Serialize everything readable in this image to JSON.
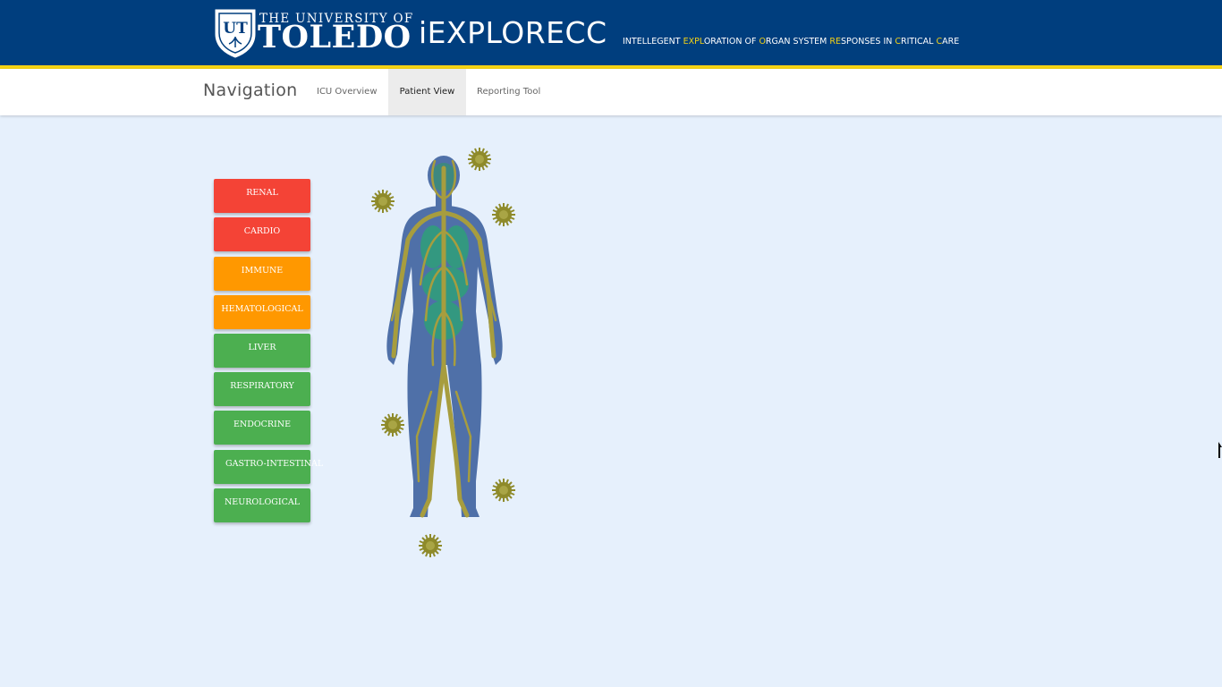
{
  "header": {
    "university_top": "THE UNIVERSITY OF",
    "university_main": "TOLEDO",
    "shield_letters": "UT",
    "app_title": "iEXPLORECC",
    "tagline": [
      {
        "text": "INTELLEGENT ",
        "hl": false
      },
      {
        "text": "EXPL",
        "hl": true
      },
      {
        "text": "ORATION OF ",
        "hl": false
      },
      {
        "text": "O",
        "hl": true
      },
      {
        "text": "RGAN SYSTEM ",
        "hl": false
      },
      {
        "text": "RE",
        "hl": true
      },
      {
        "text": "SPONSES IN ",
        "hl": false
      },
      {
        "text": "C",
        "hl": true
      },
      {
        "text": "RITICAL ",
        "hl": false
      },
      {
        "text": "C",
        "hl": true
      },
      {
        "text": "ARE",
        "hl": false
      }
    ],
    "colors": {
      "bar": "#003e7e",
      "accent": "#f5d314"
    }
  },
  "nav": {
    "brand": "Navigation",
    "links": [
      {
        "label": "ICU Overview",
        "active": false
      },
      {
        "label": "Patient View",
        "active": true
      },
      {
        "label": "Reporting Tool",
        "active": false
      }
    ]
  },
  "systems": [
    {
      "label": "RENAL",
      "status": "red"
    },
    {
      "label": "CARDIO",
      "status": "red"
    },
    {
      "label": "IMMUNE",
      "status": "orange"
    },
    {
      "label": "HEMATOLOGICAL",
      "status": "orange"
    },
    {
      "label": "LIVER",
      "status": "green"
    },
    {
      "label": "RESPIRATORY",
      "status": "green"
    },
    {
      "label": "ENDOCRINE",
      "status": "green"
    },
    {
      "label": "GASTRO-INTESTINAL",
      "status": "green"
    },
    {
      "label": "NEUROLOGICAL",
      "status": "green"
    }
  ],
  "status_colors": {
    "red": "#f44336",
    "orange": "#ff9800",
    "green": "#4caf50"
  },
  "figure": {
    "icon": "human-body-icon",
    "pathogen_icon": "virus-icon"
  }
}
